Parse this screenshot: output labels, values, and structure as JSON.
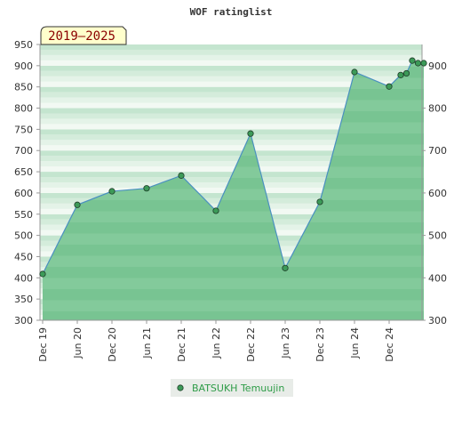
{
  "chart_data": {
    "type": "area",
    "title": "WOF ratinglist",
    "period_badge": "2019–2025",
    "ylim": [
      300,
      950
    ],
    "y_ticks_left": [
      "300",
      "350",
      "400",
      "450",
      "500",
      "550",
      "600",
      "650",
      "700",
      "750",
      "800",
      "850",
      "900",
      "950"
    ],
    "y_ticks_right": [
      "300",
      "400",
      "500",
      "600",
      "700",
      "800",
      "900"
    ],
    "x_tick_labels": [
      "Dec 19",
      "Jun 20",
      "Dec 20",
      "Jun 21",
      "Dec 21",
      "Jun 22",
      "Dec 22",
      "Jun 23",
      "Dec 23",
      "Jun 24",
      "Dec 24"
    ],
    "series": [
      {
        "name": "BATSUKH Temuujin",
        "x": [
          "Dec 19",
          "Jun 20",
          "Dec 20",
          "Jun 21",
          "Dec 21",
          "Jun 22",
          "Dec 22",
          "Jun 23",
          "Dec 23",
          "Jun 24",
          "Dec 24",
          "Feb 25",
          "Mar 25",
          "Apr 25",
          "May 25",
          "Jun 25"
        ],
        "values": [
          409,
          572,
          604,
          611,
          641,
          558,
          740,
          423,
          579,
          885,
          851,
          878,
          882,
          912,
          906,
          906
        ]
      }
    ],
    "legend": {
      "placement": "bottom-center"
    },
    "grid": true
  },
  "colors": {
    "area_fill": "#74c08c",
    "line": "#4a90c0",
    "marker": "#3c9a58",
    "badge_bg": "#ffffcc"
  }
}
